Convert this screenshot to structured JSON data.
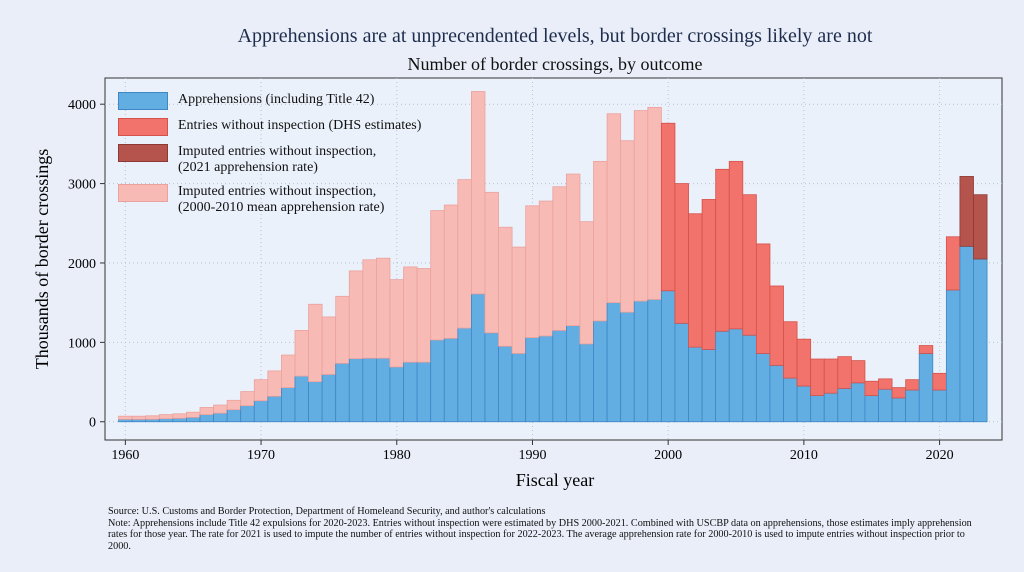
{
  "chart_data": {
    "type": "stacked_bar",
    "title": "Apprehensions are at unprecendented levels, but border crossings likely are not",
    "subtitle": "Number of border crossings, by outcome",
    "x_label": "Fiscal year",
    "y_label": "Thousands of border crossings",
    "source": "Source: U.S. Customs and Border Protection, Department of Homeleand Security, and author's calculations",
    "note": "Note: Apprehensions include Title 42 expulsions for 2020-2023. Entries without inspection were estimated by DHS 2000-2021. Combined with USCBP data on apprehensions, those estimates imply apprehension rates for those year. The rate for 2021 is used to impute the number of entries without inspection for 2022-2023. The average apprehension rate for 2000-2010 is used to impute entries without inspection prior to 2000.",
    "x": [
      1960,
      1961,
      1962,
      1963,
      1964,
      1965,
      1966,
      1967,
      1968,
      1969,
      1970,
      1971,
      1972,
      1973,
      1974,
      1975,
      1976,
      1977,
      1978,
      1979,
      1980,
      1981,
      1982,
      1983,
      1984,
      1985,
      1986,
      1987,
      1988,
      1989,
      1990,
      1991,
      1992,
      1993,
      1994,
      1995,
      1996,
      1997,
      1998,
      1999,
      2000,
      2001,
      2002,
      2003,
      2004,
      2005,
      2006,
      2007,
      2008,
      2009,
      2010,
      2011,
      2012,
      2013,
      2014,
      2015,
      2016,
      2017,
      2018,
      2019,
      2020,
      2021,
      2022,
      2023
    ],
    "series": [
      {
        "name": "Apprehensions (including Title 42)",
        "color": "#62aee3",
        "edge": "#3f86c4",
        "values": [
          30,
          30,
          31,
          39,
          43,
          55,
          90,
          108,
          152,
          202,
          265,
          320,
          430,
          575,
          505,
          595,
          735,
          795,
          800,
          800,
          690,
          750,
          750,
          1030,
          1050,
          1180,
          1610,
          1120,
          950,
          860,
          1060,
          1080,
          1150,
          1210,
          980,
          1270,
          1500,
          1380,
          1520,
          1540,
          1650,
          1240,
          940,
          910,
          1140,
          1170,
          1090,
          860,
          710,
          550,
          450,
          330,
          360,
          420,
          490,
          330,
          410,
          300,
          400,
          860,
          400,
          1660,
          2210,
          2050
        ]
      },
      {
        "name": "Entries without inspection (DHS estimates)",
        "color": "#f1736b",
        "edge": "#d4524a",
        "values": [
          null,
          null,
          null,
          null,
          null,
          null,
          null,
          null,
          null,
          null,
          null,
          null,
          null,
          null,
          null,
          null,
          null,
          null,
          null,
          null,
          null,
          null,
          null,
          null,
          null,
          null,
          null,
          null,
          null,
          null,
          null,
          null,
          null,
          null,
          null,
          null,
          null,
          null,
          null,
          null,
          2110,
          1760,
          1680,
          1890,
          2040,
          2110,
          1770,
          1380,
          1000,
          710,
          590,
          460,
          430,
          400,
          280,
          180,
          130,
          130,
          130,
          100,
          210,
          670,
          null,
          null
        ]
      },
      {
        "name": "Imputed entries without inspection,\n(2021 apprehension rate)",
        "color": "#b5544c",
        "edge": "#8e3a34",
        "values": [
          null,
          null,
          null,
          null,
          null,
          null,
          null,
          null,
          null,
          null,
          null,
          null,
          null,
          null,
          null,
          null,
          null,
          null,
          null,
          null,
          null,
          null,
          null,
          null,
          null,
          null,
          null,
          null,
          null,
          null,
          null,
          null,
          null,
          null,
          null,
          null,
          null,
          null,
          null,
          null,
          null,
          null,
          null,
          null,
          null,
          null,
          null,
          null,
          null,
          null,
          null,
          null,
          null,
          null,
          null,
          null,
          null,
          null,
          null,
          null,
          null,
          null,
          880,
          810
        ]
      },
      {
        "name": "Imputed entries without inspection,\n(2000-2010 mean apprehension rate)",
        "color": "#f8bab5",
        "edge": "#eaa29d",
        "values": [
          40,
          40,
          44,
          51,
          57,
          65,
          90,
          102,
          118,
          178,
          265,
          320,
          410,
          575,
          975,
          725,
          845,
          1105,
          1240,
          1260,
          1100,
          1200,
          1180,
          1630,
          1680,
          1870,
          2550,
          1770,
          1500,
          1340,
          1660,
          1700,
          1810,
          1910,
          1540,
          2010,
          2380,
          2160,
          2400,
          2420,
          null,
          null,
          null,
          null,
          null,
          null,
          null,
          null,
          null,
          null,
          null,
          null,
          null,
          null,
          null,
          null,
          null,
          null,
          null,
          null,
          null,
          null,
          null,
          null
        ]
      }
    ],
    "xlim": [
      1958.5,
      2024.6
    ],
    "xticks": [
      1960,
      1970,
      1980,
      1990,
      2000,
      2010,
      2020
    ],
    "ylim": [
      -230,
      4330
    ],
    "yticks": [
      0,
      1000,
      2000,
      3000,
      4000
    ],
    "grid": true,
    "legend": "top-left"
  }
}
